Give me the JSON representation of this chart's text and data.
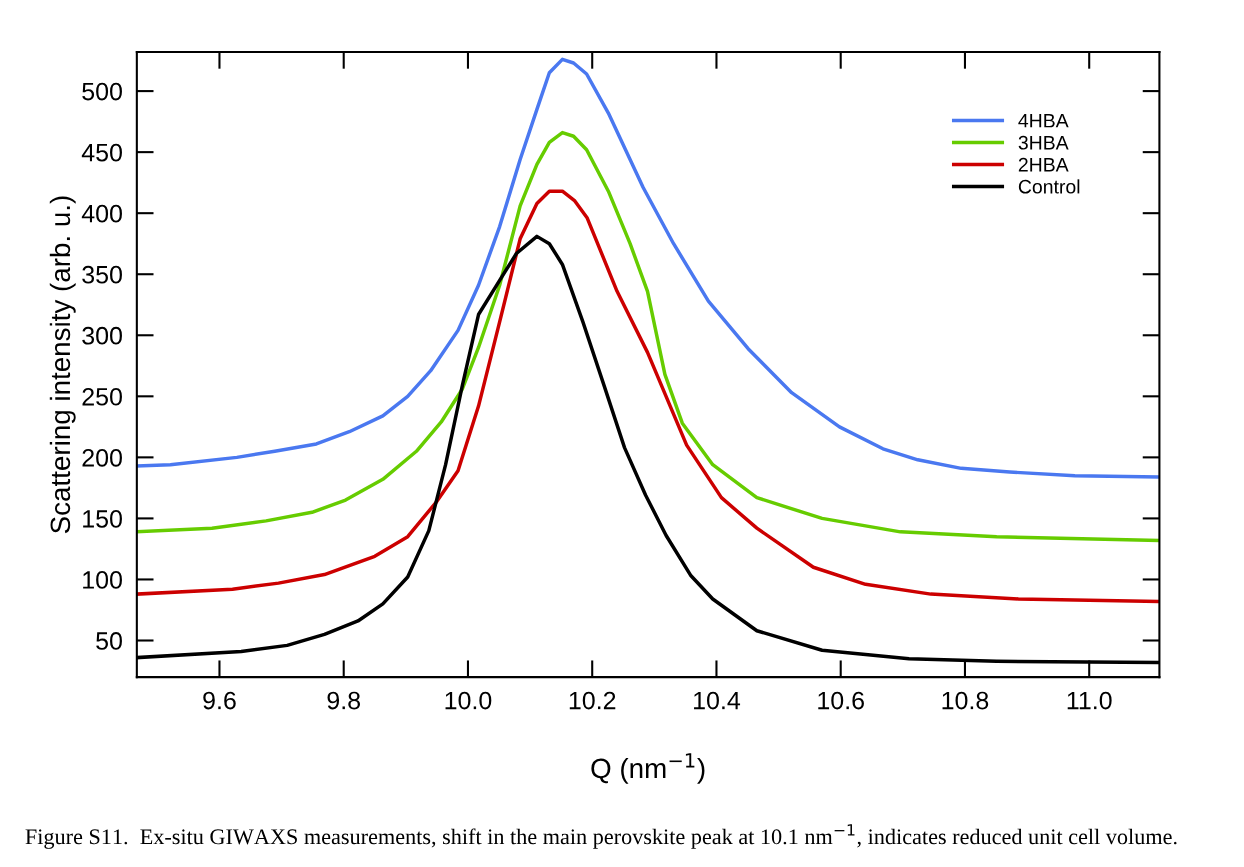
{
  "chart_data": {
    "type": "line",
    "xlabel": "Q (nm$^{−1}$)",
    "ylabel": "Scattering intensity (arb. u.)",
    "annotations": [
      "Figure S11.  Ex-situ GIWAXS measurements, shift in the main perovskite peak at 10.1 nm$^{−1}$, indicates reduced unit cell volume."
    ],
    "xlim": [
      9.467,
      11.113
    ],
    "ylim": [
      20,
      532
    ],
    "xticks": [
      {
        "value": 9.6,
        "label": "9.6"
      },
      {
        "value": 9.8,
        "label": "9.8"
      },
      {
        "value": 10.0,
        "label": "10.0"
      },
      {
        "value": 10.2,
        "label": "10.2"
      },
      {
        "value": 10.4,
        "label": "10.4"
      },
      {
        "value": 10.6,
        "label": "10.6"
      },
      {
        "value": 10.8,
        "label": "10.8"
      },
      {
        "value": 11.0,
        "label": "11.0"
      }
    ],
    "yticks": [
      50,
      100,
      150,
      200,
      250,
      300,
      350,
      400,
      450,
      500
    ],
    "grid": false,
    "legend": "top right",
    "marker": "none",
    "line_style": "solid",
    "series": [
      {
        "name": "4HBA",
        "color": "#4a78f0",
        "x": [
          9.467,
          9.521,
          9.628,
          9.689,
          9.756,
          9.809,
          9.863,
          9.903,
          9.94,
          9.984,
          10.017,
          10.051,
          10.084,
          10.111,
          10.131,
          10.152,
          10.17,
          10.191,
          10.226,
          10.282,
          10.331,
          10.387,
          10.451,
          10.521,
          10.598,
          10.668,
          10.724,
          10.794,
          10.872,
          10.977,
          11.11
        ],
        "values": [
          193,
          194,
          200,
          205,
          211,
          221,
          234,
          250,
          271,
          304,
          341,
          389,
          444,
          485,
          515,
          526,
          523,
          514,
          482,
          421,
          375,
          328,
          289,
          253,
          225,
          207,
          198,
          191,
          188,
          185,
          184
        ]
      },
      {
        "name": "3HBA",
        "color": "#66cc00",
        "x": [
          9.467,
          9.588,
          9.675,
          9.749,
          9.803,
          9.863,
          9.917,
          9.957,
          9.991,
          10.017,
          10.051,
          10.084,
          10.111,
          10.131,
          10.152,
          10.17,
          10.191,
          10.226,
          10.261,
          10.289,
          10.317,
          10.345,
          10.394,
          10.465,
          10.57,
          10.696,
          10.851,
          11.11
        ],
        "values": [
          139,
          142,
          148,
          155,
          165,
          182,
          205,
          229,
          256,
          290,
          341,
          406,
          440,
          458,
          466,
          463,
          452,
          418,
          375,
          336,
          268,
          228,
          194,
          167,
          150,
          139,
          135,
          132
        ]
      },
      {
        "name": "2HBA",
        "color": "#cc0000",
        "x": [
          9.467,
          9.621,
          9.695,
          9.769,
          9.85,
          9.903,
          9.95,
          9.984,
          10.017,
          10.051,
          10.084,
          10.111,
          10.131,
          10.152,
          10.172,
          10.192,
          10.24,
          10.289,
          10.352,
          10.408,
          10.465,
          10.556,
          10.64,
          10.745,
          10.886,
          11.11
        ],
        "values": [
          88,
          92,
          97,
          104,
          119,
          135,
          164,
          189,
          242,
          311,
          379,
          408,
          418,
          418,
          410,
          396,
          336,
          286,
          210,
          167,
          142,
          110,
          96,
          88,
          84,
          82
        ]
      },
      {
        "name": "Control",
        "color": "#000000",
        "x": [
          9.467,
          9.635,
          9.709,
          9.769,
          9.823,
          9.863,
          9.903,
          9.937,
          9.964,
          9.991,
          10.017,
          10.051,
          10.078,
          10.111,
          10.131,
          10.152,
          10.185,
          10.219,
          10.252,
          10.286,
          10.319,
          10.359,
          10.394,
          10.465,
          10.57,
          10.71,
          10.851,
          11.11
        ],
        "values": [
          36,
          41,
          46,
          55,
          66,
          80,
          102,
          140,
          194,
          259,
          317,
          345,
          367,
          381,
          375,
          358,
          311,
          259,
          208,
          169,
          136,
          103,
          84,
          58,
          42,
          35,
          33,
          32
        ]
      }
    ]
  }
}
